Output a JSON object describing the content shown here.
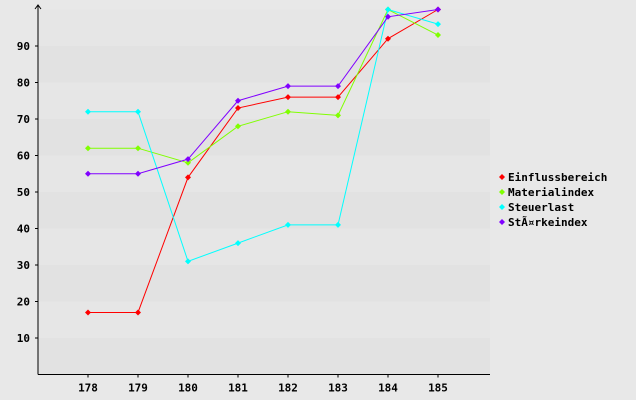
{
  "chart_data": {
    "type": "line",
    "title": "",
    "xlabel": "",
    "ylabel": "",
    "categories": [
      "178",
      "179",
      "180",
      "181",
      "182",
      "183",
      "184",
      "185"
    ],
    "ylim": [
      0,
      100
    ],
    "yticks": [
      10,
      20,
      30,
      40,
      50,
      60,
      70,
      80,
      90
    ],
    "grid": "horizontal alternating bands",
    "legend_position": "right",
    "series": [
      {
        "name": "Einflussbereich",
        "color": "#ff0000",
        "values": [
          17,
          17,
          54,
          73,
          76,
          76,
          92,
          100
        ]
      },
      {
        "name": "Materialindex",
        "color": "#80ff00",
        "values": [
          62,
          62,
          58,
          68,
          72,
          71,
          100,
          93
        ]
      },
      {
        "name": "Steuerlast",
        "color": "#00ffff",
        "values": [
          72,
          72,
          31,
          36,
          41,
          41,
          100,
          96
        ]
      },
      {
        "name": "StÃ¤rkeindex",
        "color": "#8000ff",
        "values": [
          55,
          55,
          59,
          75,
          79,
          79,
          98,
          100
        ]
      }
    ]
  }
}
